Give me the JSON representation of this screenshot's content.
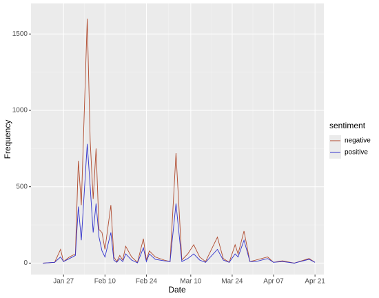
{
  "chart_data": {
    "type": "line",
    "x_label": "Date",
    "y_label": "Frequency",
    "legend_title": "sentiment",
    "x": [
      "Jan 20",
      "Jan 24",
      "Jan 26",
      "Jan 27",
      "Jan 29",
      "Jan 31",
      "Feb 1",
      "Feb 2",
      "Feb 4",
      "Feb 5",
      "Feb 6",
      "Feb 7",
      "Feb 8",
      "Feb 9",
      "Feb 10",
      "Feb 12",
      "Feb 13",
      "Feb 14",
      "Feb 15",
      "Feb 16",
      "Feb 17",
      "Feb 19",
      "Feb 21",
      "Feb 23",
      "Feb 24",
      "Feb 25",
      "Feb 27",
      "Mar 1",
      "Mar 3",
      "Mar 5",
      "Mar 7",
      "Mar 9",
      "Mar 11",
      "Mar 13",
      "Mar 15",
      "Mar 19",
      "Mar 21",
      "Mar 23",
      "Mar 25",
      "Mar 26",
      "Mar 28",
      "Mar 30",
      "Apr 1",
      "Apr 5",
      "Apr 7",
      "Apr 10",
      "Apr 14",
      "Apr 19",
      "Apr 21"
    ],
    "series": [
      {
        "name": "negative",
        "color": "#b04a2e",
        "values": [
          0,
          5,
          90,
          10,
          40,
          60,
          670,
          380,
          1600,
          800,
          420,
          750,
          220,
          200,
          90,
          380,
          40,
          10,
          50,
          20,
          110,
          40,
          5,
          160,
          20,
          80,
          40,
          20,
          10,
          720,
          20,
          60,
          120,
          40,
          10,
          170,
          30,
          5,
          120,
          60,
          210,
          10,
          20,
          40,
          5,
          15,
          0,
          30,
          5
        ]
      },
      {
        "name": "positive",
        "color": "#3333cc",
        "values": [
          0,
          5,
          40,
          10,
          30,
          50,
          370,
          150,
          780,
          500,
          200,
          390,
          170,
          80,
          40,
          200,
          20,
          5,
          30,
          10,
          60,
          20,
          2,
          100,
          10,
          60,
          25,
          15,
          10,
          390,
          10,
          30,
          60,
          20,
          5,
          90,
          20,
          5,
          60,
          40,
          150,
          10,
          10,
          30,
          5,
          10,
          0,
          25,
          5
        ]
      }
    ],
    "xlim": [
      "Jan 16",
      "Apr 24"
    ],
    "xticks": [
      "Jan 27",
      "Feb 10",
      "Feb 24",
      "Mar 10",
      "Mar 24",
      "Apr 07",
      "Apr 21"
    ],
    "ylim": [
      -75,
      1700
    ],
    "yticks": [
      0,
      500,
      1000,
      1500
    ],
    "grid": true
  }
}
